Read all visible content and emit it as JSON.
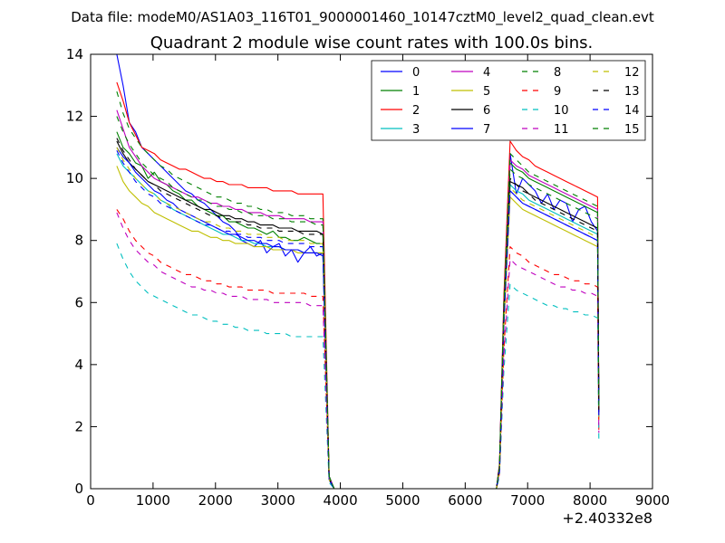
{
  "figure": {
    "suptitle": "Data file: modeM0/AS1A03_116T01_9000001460_10147cztM0_level2_quad_clean.evt"
  },
  "chart_data": {
    "type": "line",
    "title": "Quadrant 2 module wise count rates with 100.0s bins.",
    "xlabel": "",
    "ylabel": "",
    "x_offset_label": "+2.40332e8",
    "xlim": [
      0,
      9000
    ],
    "ylim": [
      0,
      14
    ],
    "x_ticks": [
      0,
      1000,
      2000,
      3000,
      4000,
      5000,
      6000,
      7000,
      8000,
      9000
    ],
    "y_ticks": [
      0,
      2,
      4,
      6,
      8,
      10,
      12,
      14
    ],
    "grid": false,
    "legend": {
      "location": "top-right",
      "columns": 4
    },
    "x": [
      420,
      520,
      620,
      720,
      820,
      920,
      1020,
      1120,
      1220,
      1320,
      1420,
      1520,
      1620,
      1720,
      1820,
      1920,
      2020,
      2120,
      2220,
      2320,
      2420,
      2520,
      2620,
      2720,
      2820,
      2920,
      3020,
      3120,
      3220,
      3320,
      3420,
      3520,
      3620,
      3720,
      3820,
      3900,
      4000,
      4500,
      5000,
      5500,
      6000,
      6500,
      6550,
      6620,
      6720,
      6820,
      6920,
      7020,
      7120,
      7220,
      7320,
      7420,
      7520,
      7620,
      7720,
      7820,
      7920,
      8020,
      8120,
      8140
    ],
    "series": [
      {
        "name": "0",
        "color": "#0000ff",
        "dash": "solid",
        "values": [
          14.0,
          13.0,
          11.8,
          11.5,
          11.0,
          10.8,
          10.6,
          10.4,
          10.2,
          10.0,
          9.8,
          9.6,
          9.5,
          9.3,
          9.2,
          9.0,
          8.8,
          8.6,
          8.5,
          8.3,
          8.0,
          7.9,
          7.8,
          8.0,
          7.6,
          7.8,
          7.9,
          7.5,
          7.7,
          7.3,
          7.6,
          7.8,
          7.5,
          7.6,
          0.4,
          0.0,
          0.0,
          0.0,
          0.0,
          0.0,
          0.0,
          0.0,
          0.8,
          6.0,
          10.8,
          9.5,
          10.0,
          9.8,
          9.6,
          9.2,
          9.5,
          9.0,
          9.3,
          9.2,
          8.6,
          9.0,
          9.1,
          8.6,
          8.3,
          2.8
        ]
      },
      {
        "name": "1",
        "color": "#008000",
        "dash": "solid",
        "values": [
          11.5,
          11.0,
          10.8,
          10.5,
          10.4,
          10.0,
          10.2,
          9.9,
          9.8,
          9.6,
          9.5,
          9.3,
          9.3,
          9.1,
          9.0,
          8.9,
          8.8,
          8.8,
          8.6,
          8.6,
          8.5,
          8.4,
          8.4,
          8.3,
          8.2,
          8.3,
          8.1,
          8.1,
          8.0,
          8.0,
          8.1,
          8.0,
          7.9,
          7.9,
          0.3,
          0.0,
          0.0,
          0.0,
          0.0,
          0.0,
          0.0,
          0.0,
          0.7,
          5.8,
          10.5,
          10.3,
          10.2,
          10.0,
          9.9,
          9.8,
          9.7,
          9.6,
          9.5,
          9.4,
          9.3,
          9.2,
          9.1,
          9.0,
          8.9,
          2.6
        ]
      },
      {
        "name": "2",
        "color": "#ff0000",
        "dash": "solid",
        "values": [
          13.1,
          12.5,
          11.8,
          11.4,
          11.0,
          10.9,
          10.8,
          10.6,
          10.5,
          10.4,
          10.3,
          10.3,
          10.2,
          10.1,
          10.0,
          10.0,
          9.9,
          9.9,
          9.8,
          9.8,
          9.8,
          9.7,
          9.7,
          9.7,
          9.7,
          9.6,
          9.6,
          9.6,
          9.6,
          9.5,
          9.5,
          9.5,
          9.5,
          9.5,
          0.4,
          0.0,
          0.0,
          0.0,
          0.0,
          0.0,
          0.0,
          0.0,
          0.8,
          6.2,
          11.2,
          10.9,
          10.7,
          10.6,
          10.4,
          10.3,
          10.2,
          10.1,
          10.0,
          9.9,
          9.8,
          9.7,
          9.6,
          9.5,
          9.4,
          2.7
        ]
      },
      {
        "name": "3",
        "color": "#00bfbf",
        "dash": "solid",
        "values": [
          10.8,
          10.4,
          10.2,
          10.0,
          9.8,
          9.6,
          9.5,
          9.3,
          9.2,
          9.0,
          8.9,
          8.8,
          8.7,
          8.6,
          8.5,
          8.4,
          8.3,
          8.2,
          8.2,
          8.1,
          8.0,
          8.0,
          7.9,
          7.9,
          7.8,
          7.8,
          7.8,
          7.7,
          7.7,
          7.7,
          7.6,
          7.6,
          7.6,
          7.6,
          0.3,
          0.0,
          0.0,
          0.0,
          0.0,
          0.0,
          0.0,
          0.0,
          0.6,
          5.4,
          9.8,
          9.6,
          9.5,
          9.3,
          9.2,
          9.1,
          9.0,
          8.9,
          8.8,
          8.7,
          8.6,
          8.5,
          8.4,
          8.3,
          8.2,
          2.4
        ]
      },
      {
        "name": "4",
        "color": "#bf00bf",
        "dash": "solid",
        "values": [
          12.2,
          11.6,
          11.0,
          10.7,
          10.4,
          10.2,
          10.0,
          9.9,
          9.8,
          9.7,
          9.6,
          9.5,
          9.4,
          9.4,
          9.3,
          9.2,
          9.2,
          9.1,
          9.1,
          9.0,
          9.0,
          8.9,
          8.9,
          8.9,
          8.8,
          8.8,
          8.8,
          8.7,
          8.7,
          8.7,
          8.7,
          8.6,
          8.6,
          8.6,
          0.4,
          0.0,
          0.0,
          0.0,
          0.0,
          0.0,
          0.0,
          0.0,
          0.7,
          5.9,
          10.6,
          10.4,
          10.3,
          10.1,
          10.0,
          9.9,
          9.8,
          9.7,
          9.6,
          9.5,
          9.4,
          9.3,
          9.2,
          9.1,
          9.0,
          2.5
        ]
      },
      {
        "name": "5",
        "color": "#bfbf00",
        "dash": "solid",
        "values": [
          10.4,
          9.9,
          9.6,
          9.4,
          9.2,
          9.1,
          8.9,
          8.8,
          8.7,
          8.6,
          8.5,
          8.4,
          8.3,
          8.3,
          8.2,
          8.1,
          8.1,
          8.0,
          8.0,
          7.9,
          7.9,
          7.9,
          7.8,
          7.8,
          7.8,
          7.7,
          7.7,
          7.7,
          7.7,
          7.6,
          7.6,
          7.6,
          7.6,
          7.6,
          0.3,
          0.0,
          0.0,
          0.0,
          0.0,
          0.0,
          0.0,
          0.0,
          0.6,
          5.2,
          9.4,
          9.2,
          9.0,
          8.9,
          8.8,
          8.7,
          8.6,
          8.5,
          8.4,
          8.3,
          8.2,
          8.1,
          8.0,
          7.9,
          7.8,
          2.2
        ]
      },
      {
        "name": "6",
        "color": "#000000",
        "dash": "solid",
        "values": [
          11.2,
          10.8,
          10.5,
          10.3,
          10.1,
          9.9,
          9.8,
          9.7,
          9.6,
          9.5,
          9.4,
          9.3,
          9.2,
          9.1,
          9.0,
          9.0,
          8.9,
          8.8,
          8.8,
          8.7,
          8.7,
          8.6,
          8.6,
          8.5,
          8.5,
          8.5,
          8.4,
          8.4,
          8.4,
          8.3,
          8.3,
          8.3,
          8.3,
          8.2,
          0.3,
          0.0,
          0.0,
          0.0,
          0.0,
          0.0,
          0.0,
          0.0,
          0.7,
          5.6,
          9.9,
          9.8,
          9.7,
          9.5,
          9.4,
          9.3,
          9.2,
          9.1,
          9.0,
          8.9,
          8.8,
          8.7,
          8.6,
          8.5,
          8.4,
          2.4
        ]
      },
      {
        "name": "7",
        "color": "#0000ff",
        "dash": "solid",
        "values": [
          11.0,
          10.7,
          10.5,
          10.2,
          10.0,
          9.8,
          9.6,
          9.5,
          9.3,
          9.2,
          9.0,
          8.9,
          8.8,
          8.7,
          8.6,
          8.5,
          8.4,
          8.3,
          8.2,
          8.2,
          8.1,
          8.0,
          8.0,
          7.9,
          7.9,
          7.8,
          7.8,
          7.7,
          7.7,
          7.7,
          7.6,
          7.6,
          7.6,
          7.5,
          0.3,
          0.0,
          0.0,
          0.0,
          0.0,
          0.0,
          0.0,
          0.0,
          0.6,
          5.5,
          9.6,
          9.4,
          9.2,
          9.1,
          9.0,
          8.9,
          8.8,
          8.7,
          8.6,
          8.5,
          8.4,
          8.3,
          8.2,
          8.1,
          8.0,
          2.3
        ]
      },
      {
        "name": "8",
        "color": "#008000",
        "dash": "dashed",
        "values": [
          12.8,
          12.1,
          11.6,
          11.3,
          11.0,
          10.8,
          10.6,
          10.4,
          10.3,
          10.1,
          10.0,
          9.9,
          9.8,
          9.7,
          9.6,
          9.5,
          9.4,
          9.4,
          9.3,
          9.2,
          9.2,
          9.1,
          9.1,
          9.0,
          9.0,
          8.9,
          8.9,
          8.9,
          8.8,
          8.8,
          8.8,
          8.7,
          8.7,
          8.7,
          0.4,
          0.0,
          0.0,
          0.0,
          0.0,
          0.0,
          0.0,
          0.0,
          0.7,
          6.0,
          10.8,
          10.6,
          10.4,
          10.2,
          10.1,
          10.0,
          9.9,
          9.8,
          9.7,
          9.6,
          9.5,
          9.4,
          9.3,
          9.2,
          9.1,
          2.6
        ]
      },
      {
        "name": "9",
        "color": "#ff0000",
        "dash": "dashed",
        "values": [
          9.0,
          8.7,
          8.3,
          8.0,
          7.8,
          7.6,
          7.5,
          7.3,
          7.2,
          7.1,
          7.0,
          6.9,
          6.9,
          6.8,
          6.7,
          6.7,
          6.6,
          6.6,
          6.5,
          6.5,
          6.5,
          6.4,
          6.4,
          6.4,
          6.4,
          6.3,
          6.3,
          6.3,
          6.3,
          6.3,
          6.3,
          6.2,
          6.2,
          6.2,
          0.3,
          0.0,
          0.0,
          0.0,
          0.0,
          0.0,
          0.0,
          0.0,
          0.5,
          4.5,
          7.8,
          7.6,
          7.5,
          7.3,
          7.2,
          7.1,
          7.0,
          6.9,
          6.9,
          6.8,
          6.7,
          6.7,
          6.6,
          6.6,
          6.5,
          1.9
        ]
      },
      {
        "name": "10",
        "color": "#00bfbf",
        "dash": "dashed",
        "values": [
          7.9,
          7.4,
          7.0,
          6.7,
          6.5,
          6.3,
          6.2,
          6.1,
          6.0,
          5.9,
          5.8,
          5.7,
          5.6,
          5.6,
          5.5,
          5.4,
          5.4,
          5.3,
          5.3,
          5.2,
          5.2,
          5.1,
          5.1,
          5.1,
          5.0,
          5.0,
          5.0,
          5.0,
          4.9,
          4.9,
          4.9,
          4.9,
          4.9,
          4.9,
          0.2,
          0.0,
          0.0,
          0.0,
          0.0,
          0.0,
          0.0,
          0.0,
          0.4,
          3.8,
          6.6,
          6.4,
          6.3,
          6.2,
          6.1,
          6.0,
          5.9,
          5.9,
          5.8,
          5.8,
          5.7,
          5.7,
          5.6,
          5.6,
          5.5,
          1.6
        ]
      },
      {
        "name": "11",
        "color": "#bf00bf",
        "dash": "dashed",
        "values": [
          8.9,
          8.4,
          8.0,
          7.7,
          7.5,
          7.3,
          7.2,
          7.0,
          6.9,
          6.8,
          6.7,
          6.6,
          6.5,
          6.5,
          6.4,
          6.4,
          6.3,
          6.3,
          6.2,
          6.2,
          6.2,
          6.1,
          6.1,
          6.1,
          6.1,
          6.0,
          6.0,
          6.0,
          6.0,
          6.0,
          6.0,
          5.9,
          5.9,
          5.9,
          0.3,
          0.0,
          0.0,
          0.0,
          0.0,
          0.0,
          0.0,
          0.0,
          0.5,
          4.3,
          7.4,
          7.2,
          7.1,
          7.0,
          6.9,
          6.8,
          6.7,
          6.6,
          6.5,
          6.5,
          6.4,
          6.4,
          6.3,
          6.3,
          6.2,
          1.8
        ]
      },
      {
        "name": "12",
        "color": "#bfbf00",
        "dash": "dashed",
        "values": [
          11.0,
          10.6,
          10.3,
          10.0,
          9.8,
          9.6,
          9.5,
          9.3,
          9.2,
          9.1,
          9.0,
          8.9,
          8.8,
          8.7,
          8.6,
          8.6,
          8.5,
          8.4,
          8.4,
          8.3,
          8.3,
          8.2,
          8.2,
          8.2,
          8.1,
          8.1,
          8.1,
          8.0,
          8.0,
          8.0,
          8.0,
          7.9,
          7.9,
          7.9,
          0.3,
          0.0,
          0.0,
          0.0,
          0.0,
          0.0,
          0.0,
          0.0,
          0.6,
          5.4,
          9.7,
          9.5,
          9.3,
          9.2,
          9.1,
          9.0,
          8.9,
          8.8,
          8.7,
          8.6,
          8.5,
          8.4,
          8.3,
          8.2,
          8.1,
          2.3
        ]
      },
      {
        "name": "13",
        "color": "#000000",
        "dash": "dashed",
        "values": [
          11.3,
          10.9,
          10.6,
          10.3,
          10.1,
          9.9,
          9.8,
          9.6,
          9.5,
          9.4,
          9.3,
          9.2,
          9.1,
          9.0,
          8.9,
          8.8,
          8.8,
          8.7,
          8.7,
          8.6,
          8.6,
          8.5,
          8.5,
          8.4,
          8.4,
          8.4,
          8.3,
          8.3,
          8.3,
          8.3,
          8.2,
          8.2,
          8.2,
          8.2,
          0.3,
          0.0,
          0.0,
          0.0,
          0.0,
          0.0,
          0.0,
          0.0,
          0.7,
          5.6,
          10.0,
          9.8,
          9.6,
          9.5,
          9.3,
          9.2,
          9.1,
          9.0,
          8.9,
          8.8,
          8.7,
          8.6,
          8.5,
          8.4,
          8.3,
          2.4
        ]
      },
      {
        "name": "14",
        "color": "#0000ff",
        "dash": "dashed",
        "values": [
          10.9,
          10.5,
          10.2,
          9.9,
          9.7,
          9.5,
          9.4,
          9.2,
          9.1,
          9.0,
          8.9,
          8.8,
          8.7,
          8.6,
          8.5,
          8.5,
          8.4,
          8.3,
          8.3,
          8.2,
          8.2,
          8.1,
          8.1,
          8.1,
          8.0,
          8.0,
          8.0,
          7.9,
          7.9,
          7.9,
          7.9,
          7.8,
          7.8,
          7.8,
          0.3,
          0.0,
          0.0,
          0.0,
          0.0,
          0.0,
          0.0,
          0.0,
          0.6,
          5.3,
          9.6,
          9.4,
          9.2,
          9.1,
          9.0,
          8.9,
          8.8,
          8.7,
          8.6,
          8.5,
          8.4,
          8.3,
          8.2,
          8.1,
          8.0,
          2.3
        ]
      },
      {
        "name": "15",
        "color": "#008000",
        "dash": "dashed",
        "values": [
          12.0,
          11.5,
          11.1,
          10.8,
          10.5,
          10.3,
          10.1,
          10.0,
          9.9,
          9.7,
          9.6,
          9.5,
          9.4,
          9.3,
          9.3,
          9.2,
          9.1,
          9.1,
          9.0,
          9.0,
          8.9,
          8.9,
          8.8,
          8.8,
          8.8,
          8.7,
          8.7,
          8.7,
          8.6,
          8.6,
          8.6,
          8.6,
          8.5,
          8.5,
          0.4,
          0.0,
          0.0,
          0.0,
          0.0,
          0.0,
          0.0,
          0.0,
          0.7,
          5.8,
          10.3,
          10.1,
          10.0,
          9.8,
          9.7,
          9.6,
          9.5,
          9.4,
          9.3,
          9.2,
          9.1,
          9.0,
          8.9,
          8.8,
          8.7,
          2.5
        ]
      }
    ]
  }
}
